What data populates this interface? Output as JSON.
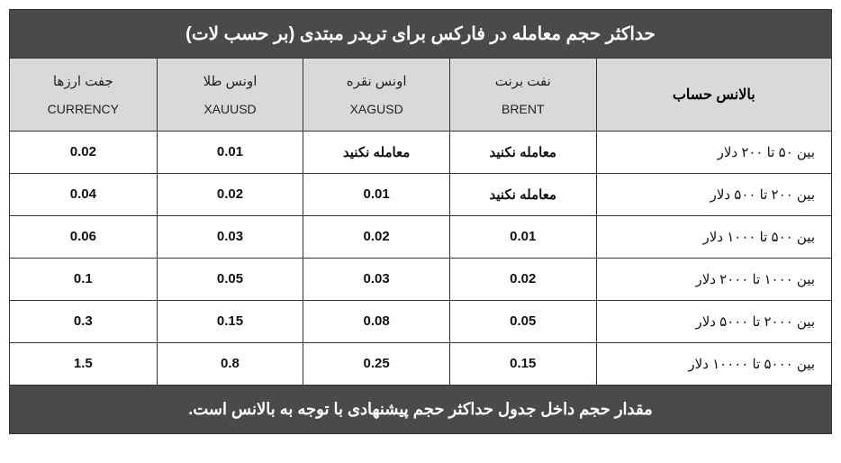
{
  "table": {
    "title": "حداکثر حجم معامله در فارکس برای تریدر مبتدی (بر حسب لات)",
    "footer": "مقدار حجم داخل جدول حداکثر حجم پیشنهادی با توجه به بالانس است.",
    "balance_header": "بالانس حساب",
    "columns": [
      {
        "top": "نفت برنت",
        "sub": "BRENT"
      },
      {
        "top": "اونس نقره",
        "sub": "XAGUSD"
      },
      {
        "top": "اونس طلا",
        "sub": "XAUUSD"
      },
      {
        "top": "جفت ارزها",
        "sub": "CURRENCY"
      }
    ],
    "rows": [
      {
        "balance": "بین ۵۰ تا ۲۰۰ دلار",
        "brent": "معامله نکنید",
        "xag": "معامله نکنید",
        "xau": "0.01",
        "currency": "0.02"
      },
      {
        "balance": "بین ۲۰۰ تا ۵۰۰ دلار",
        "brent": "معامله نکنید",
        "xag": "0.01",
        "xau": "0.02",
        "currency": "0.04"
      },
      {
        "balance": "بین ۵۰۰ تا ۱۰۰۰ دلار",
        "brent": "0.01",
        "xag": "0.02",
        "xau": "0.03",
        "currency": "0.06"
      },
      {
        "balance": "بین ۱۰۰۰ تا ۲۰۰۰ دلار",
        "brent": "0.02",
        "xag": "0.03",
        "xau": "0.05",
        "currency": "0.1"
      },
      {
        "balance": "بین ۲۰۰۰ تا ۵۰۰۰ دلار",
        "brent": "0.05",
        "xag": "0.08",
        "xau": "0.15",
        "currency": "0.3"
      },
      {
        "balance": "بین ۵۰۰۰ تا ۱۰۰۰۰ دلار",
        "brent": "0.15",
        "xag": "0.25",
        "xau": "0.8",
        "currency": "1.5"
      }
    ]
  }
}
